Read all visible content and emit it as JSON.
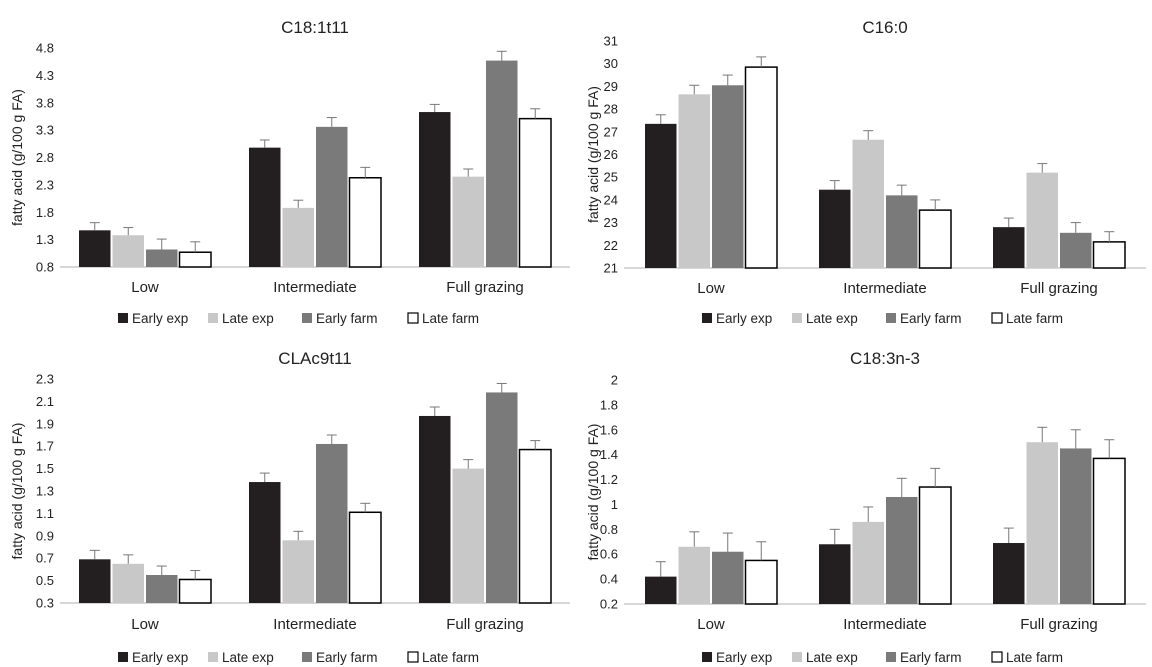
{
  "legend": [
    {
      "label": "Early exp",
      "color": "#231f20"
    },
    {
      "label": "Late exp",
      "color": "#c8c8c8"
    },
    {
      "label": "Early farm",
      "color": "#7a7a7a"
    },
    {
      "label": "Late farm",
      "color": "#ffffff"
    }
  ],
  "chart_data": [
    {
      "type": "bar",
      "title": "C18:1t11",
      "ylabel": "fatty acid (g/100 g FA)",
      "categories": [
        "Low",
        "Intermediate",
        "Full grazing"
      ],
      "ylim": [
        0.8,
        4.8
      ],
      "yticks": [
        "0.8",
        "1.3",
        "1.8",
        "2.3",
        "2.8",
        "3.3",
        "3.8",
        "4.3",
        "4.8"
      ],
      "ytick_values": [
        0.8,
        1.3,
        1.8,
        2.3,
        2.8,
        3.3,
        3.8,
        4.3,
        4.8
      ],
      "series": [
        {
          "name": "Early exp",
          "values": [
            1.47,
            2.98,
            3.63
          ],
          "errors": [
            0.14,
            0.14,
            0.14
          ]
        },
        {
          "name": "Late exp",
          "values": [
            1.38,
            1.88,
            2.45
          ],
          "errors": [
            0.14,
            0.14,
            0.14
          ]
        },
        {
          "name": "Early farm",
          "values": [
            1.12,
            3.36,
            4.57
          ],
          "errors": [
            0.19,
            0.17,
            0.17
          ]
        },
        {
          "name": "Late farm",
          "values": [
            1.07,
            2.43,
            3.51
          ],
          "errors": [
            0.19,
            0.19,
            0.18
          ]
        }
      ]
    },
    {
      "type": "bar",
      "title": "C16:0",
      "ylabel": "fatty acid (g/100 g FA)",
      "categories": [
        "Low",
        "Intermediate",
        "Full grazing"
      ],
      "ylim": [
        21,
        31
      ],
      "yticks": [
        "21",
        "22",
        "23",
        "24",
        "25",
        "26",
        "27",
        "28",
        "29",
        "30",
        "31"
      ],
      "ytick_values": [
        21,
        22,
        23,
        24,
        25,
        26,
        27,
        28,
        29,
        30,
        31
      ],
      "series": [
        {
          "name": "Early exp",
          "values": [
            27.35,
            24.45,
            22.8
          ],
          "errors": [
            0.4,
            0.4,
            0.4
          ]
        },
        {
          "name": "Late exp",
          "values": [
            28.65,
            26.65,
            25.2
          ],
          "errors": [
            0.4,
            0.4,
            0.4
          ]
        },
        {
          "name": "Early farm",
          "values": [
            29.05,
            24.2,
            22.55
          ],
          "errors": [
            0.45,
            0.45,
            0.45
          ]
        },
        {
          "name": "Late farm",
          "values": [
            29.85,
            23.55,
            22.15
          ],
          "errors": [
            0.45,
            0.45,
            0.45
          ]
        }
      ]
    },
    {
      "type": "bar",
      "title": "CLAc9t11",
      "ylabel": "fatty acid (g/100 g FA)",
      "categories": [
        "Low",
        "Intermediate",
        "Full grazing"
      ],
      "ylim": [
        0.3,
        2.3
      ],
      "yticks": [
        "0.3",
        "0.5",
        "0.7",
        "0.9",
        "1.1",
        "1.3",
        "1.5",
        "1.7",
        "1.9",
        "2.1",
        "2.3"
      ],
      "ytick_values": [
        0.3,
        0.5,
        0.7,
        0.9,
        1.1,
        1.3,
        1.5,
        1.7,
        1.9,
        2.1,
        2.3
      ],
      "series": [
        {
          "name": "Early exp",
          "values": [
            0.69,
            1.38,
            1.97
          ],
          "errors": [
            0.08,
            0.08,
            0.08
          ]
        },
        {
          "name": "Late exp",
          "values": [
            0.65,
            0.86,
            1.5
          ],
          "errors": [
            0.08,
            0.08,
            0.08
          ]
        },
        {
          "name": "Early farm",
          "values": [
            0.55,
            1.72,
            2.18
          ],
          "errors": [
            0.08,
            0.08,
            0.08
          ]
        },
        {
          "name": "Late farm",
          "values": [
            0.51,
            1.11,
            1.67
          ],
          "errors": [
            0.08,
            0.08,
            0.08
          ]
        }
      ]
    },
    {
      "type": "bar",
      "title": "C18:3n-3",
      "ylabel": "fatty acid (g/100 g FA)",
      "categories": [
        "Low",
        "Intermediate",
        "Full grazing"
      ],
      "ylim": [
        0.2,
        2
      ],
      "yticks": [
        "0.2",
        "0.4",
        "0.6",
        "0.8",
        "1",
        "1.2",
        "1.4",
        "1.6",
        "1.8",
        "2"
      ],
      "ytick_values": [
        0.2,
        0.4,
        0.6,
        0.8,
        1,
        1.2,
        1.4,
        1.6,
        1.8,
        2
      ],
      "series": [
        {
          "name": "Early exp",
          "values": [
            0.42,
            0.68,
            0.69
          ],
          "errors": [
            0.12,
            0.12,
            0.12
          ]
        },
        {
          "name": "Late exp",
          "values": [
            0.66,
            0.86,
            1.5
          ],
          "errors": [
            0.12,
            0.12,
            0.12
          ]
        },
        {
          "name": "Early farm",
          "values": [
            0.62,
            1.06,
            1.45
          ],
          "errors": [
            0.15,
            0.15,
            0.15
          ]
        },
        {
          "name": "Late farm",
          "values": [
            0.55,
            1.14,
            1.37
          ],
          "errors": [
            0.15,
            0.15,
            0.15
          ]
        }
      ]
    }
  ]
}
